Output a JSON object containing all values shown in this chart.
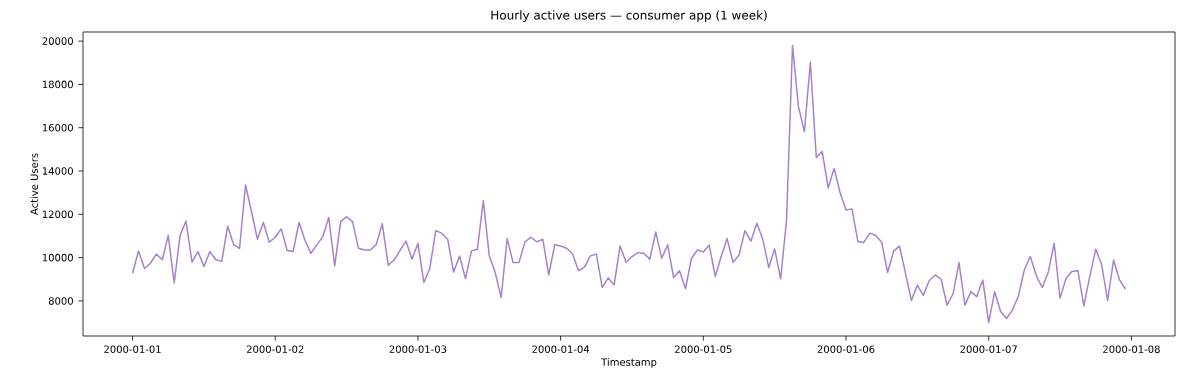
{
  "chart_data": {
    "type": "line",
    "title": "Hourly active users — consumer app (1 week)",
    "xlabel": "Timestamp",
    "ylabel": "Active Users",
    "color": "#a67fcc",
    "x": [
      "2000-01-01T00:00",
      "2000-01-01T01:00",
      "2000-01-01T02:00",
      "2000-01-01T03:00",
      "2000-01-01T04:00",
      "2000-01-01T05:00",
      "2000-01-01T06:00",
      "2000-01-01T07:00",
      "2000-01-01T08:00",
      "2000-01-01T09:00",
      "2000-01-01T10:00",
      "2000-01-01T11:00",
      "2000-01-01T12:00",
      "2000-01-01T13:00",
      "2000-01-01T14:00",
      "2000-01-01T15:00",
      "2000-01-01T16:00",
      "2000-01-01T17:00",
      "2000-01-01T18:00",
      "2000-01-01T19:00",
      "2000-01-01T20:00",
      "2000-01-01T21:00",
      "2000-01-01T22:00",
      "2000-01-01T23:00",
      "2000-01-02T00:00",
      "2000-01-02T01:00",
      "2000-01-02T02:00",
      "2000-01-02T03:00",
      "2000-01-02T04:00",
      "2000-01-02T05:00",
      "2000-01-02T06:00",
      "2000-01-02T07:00",
      "2000-01-02T08:00",
      "2000-01-02T09:00",
      "2000-01-02T10:00",
      "2000-01-02T11:00",
      "2000-01-02T12:00",
      "2000-01-02T13:00",
      "2000-01-02T14:00",
      "2000-01-02T15:00",
      "2000-01-02T16:00",
      "2000-01-02T17:00",
      "2000-01-02T18:00",
      "2000-01-02T19:00",
      "2000-01-02T20:00",
      "2000-01-02T21:00",
      "2000-01-02T22:00",
      "2000-01-02T23:00",
      "2000-01-03T00:00",
      "2000-01-03T01:00",
      "2000-01-03T02:00",
      "2000-01-03T03:00",
      "2000-01-03T04:00",
      "2000-01-03T05:00",
      "2000-01-03T06:00",
      "2000-01-03T07:00",
      "2000-01-03T08:00",
      "2000-01-03T09:00",
      "2000-01-03T10:00",
      "2000-01-03T11:00",
      "2000-01-03T12:00",
      "2000-01-03T13:00",
      "2000-01-03T14:00",
      "2000-01-03T15:00",
      "2000-01-03T16:00",
      "2000-01-03T17:00",
      "2000-01-03T18:00",
      "2000-01-03T19:00",
      "2000-01-03T20:00",
      "2000-01-03T21:00",
      "2000-01-03T22:00",
      "2000-01-03T23:00",
      "2000-01-04T00:00",
      "2000-01-04T01:00",
      "2000-01-04T02:00",
      "2000-01-04T03:00",
      "2000-01-04T04:00",
      "2000-01-04T05:00",
      "2000-01-04T06:00",
      "2000-01-04T07:00",
      "2000-01-04T08:00",
      "2000-01-04T09:00",
      "2000-01-04T10:00",
      "2000-01-04T11:00",
      "2000-01-04T12:00",
      "2000-01-04T13:00",
      "2000-01-04T14:00",
      "2000-01-04T15:00",
      "2000-01-04T16:00",
      "2000-01-04T17:00",
      "2000-01-04T18:00",
      "2000-01-04T19:00",
      "2000-01-04T20:00",
      "2000-01-04T21:00",
      "2000-01-04T22:00",
      "2000-01-04T23:00",
      "2000-01-05T00:00",
      "2000-01-05T01:00",
      "2000-01-05T02:00",
      "2000-01-05T03:00",
      "2000-01-05T04:00",
      "2000-01-05T05:00",
      "2000-01-05T06:00",
      "2000-01-05T07:00",
      "2000-01-05T08:00",
      "2000-01-05T09:00",
      "2000-01-05T10:00",
      "2000-01-05T11:00",
      "2000-01-05T12:00",
      "2000-01-05T13:00",
      "2000-01-05T14:00",
      "2000-01-05T15:00",
      "2000-01-05T16:00",
      "2000-01-05T17:00",
      "2000-01-05T18:00",
      "2000-01-05T19:00",
      "2000-01-05T20:00",
      "2000-01-05T21:00",
      "2000-01-05T22:00",
      "2000-01-05T23:00",
      "2000-01-06T00:00",
      "2000-01-06T01:00",
      "2000-01-06T02:00",
      "2000-01-06T03:00",
      "2000-01-06T04:00",
      "2000-01-06T05:00",
      "2000-01-06T06:00",
      "2000-01-06T07:00",
      "2000-01-06T08:00",
      "2000-01-06T09:00",
      "2000-01-06T10:00",
      "2000-01-06T11:00",
      "2000-01-06T12:00",
      "2000-01-06T13:00",
      "2000-01-06T14:00",
      "2000-01-06T15:00",
      "2000-01-06T16:00",
      "2000-01-06T17:00",
      "2000-01-06T18:00",
      "2000-01-06T19:00",
      "2000-01-06T20:00",
      "2000-01-06T21:00",
      "2000-01-06T22:00",
      "2000-01-06T23:00",
      "2000-01-07T00:00",
      "2000-01-07T01:00",
      "2000-01-07T02:00",
      "2000-01-07T03:00",
      "2000-01-07T04:00",
      "2000-01-07T05:00",
      "2000-01-07T06:00",
      "2000-01-07T07:00",
      "2000-01-07T08:00",
      "2000-01-07T09:00",
      "2000-01-07T10:00",
      "2000-01-07T11:00",
      "2000-01-07T12:00",
      "2000-01-07T13:00",
      "2000-01-07T14:00",
      "2000-01-07T15:00",
      "2000-01-07T16:00",
      "2000-01-07T17:00",
      "2000-01-07T18:00",
      "2000-01-07T19:00",
      "2000-01-07T20:00",
      "2000-01-07T21:00",
      "2000-01-07T22:00",
      "2000-01-07T23:00"
    ],
    "values": [
      9280,
      10310,
      9500,
      9740,
      10160,
      9900,
      11030,
      8830,
      11030,
      11690,
      9790,
      10280,
      9590,
      10280,
      9900,
      9830,
      11460,
      10600,
      10430,
      13360,
      12130,
      10850,
      11620,
      10710,
      10940,
      11330,
      10330,
      10280,
      11630,
      10800,
      10200,
      10590,
      10970,
      11850,
      9620,
      11660,
      11890,
      11660,
      10430,
      10350,
      10350,
      10620,
      11570,
      9650,
      9890,
      10330,
      10760,
      9930,
      10650,
      8850,
      9510,
      11250,
      11130,
      10850,
      9330,
      10080,
      9030,
      10310,
      10390,
      12630,
      10080,
      9310,
      8160,
      10880,
      9770,
      9770,
      10730,
      10940,
      10730,
      10850,
      9200,
      10590,
      10540,
      10430,
      10170,
      9400,
      9560,
      10080,
      10160,
      8630,
      9060,
      8740,
      10540,
      9790,
      10050,
      10230,
      10200,
      9930,
      11190,
      9970,
      10590,
      9080,
      9390,
      8570,
      9960,
      10360,
      10260,
      10570,
      9130,
      10050,
      10880,
      9790,
      10110,
      11250,
      10760,
      11590,
      10850,
      9540,
      10400,
      9020,
      11740,
      19800,
      16970,
      15820,
      19020,
      14620,
      14900,
      13230,
      14120,
      13000,
      12200,
      12250,
      10740,
      10700,
      11130,
      11020,
      10710,
      9310,
      10300,
      10530,
      9280,
      8020,
      8730,
      8250,
      8940,
      9200,
      9000,
      7800,
      8330,
      9770,
      7800,
      8430,
      8200,
      8970,
      7000,
      8430,
      7510,
      7190,
      7590,
      8230,
      9440,
      10050,
      9170,
      8620,
      9310,
      10660,
      8130,
      9050,
      9360,
      9390,
      7770,
      9130,
      10390,
      9670,
      8020,
      9890,
      8970,
      8550
    ],
    "xlim": [
      "1999-12-31T15:40",
      "2000-01-08T07:20"
    ],
    "ylim": [
      6380,
      20420
    ],
    "xticks": [
      "2000-01-01",
      "2000-01-02",
      "2000-01-03",
      "2000-01-04",
      "2000-01-05",
      "2000-01-06",
      "2000-01-07",
      "2000-01-08"
    ],
    "yticks": [
      8000,
      10000,
      12000,
      14000,
      16000,
      18000,
      20000
    ]
  }
}
